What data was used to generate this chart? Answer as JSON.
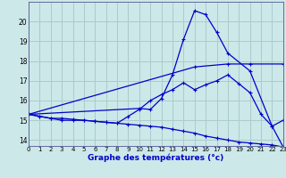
{
  "title": "Graphe des températures (°c)",
  "background_color": "#cce8e8",
  "grid_color": "#aacccc",
  "line_color": "#0000cc",
  "xlim": [
    0,
    23
  ],
  "ylim": [
    13.7,
    21.0
  ],
  "yticks": [
    14,
    15,
    16,
    17,
    18,
    19,
    20
  ],
  "xticks": [
    0,
    1,
    2,
    3,
    4,
    5,
    6,
    7,
    8,
    9,
    10,
    11,
    12,
    13,
    14,
    15,
    16,
    17,
    18,
    19,
    20,
    21,
    22,
    23
  ],
  "line1_x": [
    0,
    1,
    2,
    3,
    4,
    5,
    6,
    7,
    8,
    9,
    10,
    11,
    12,
    13,
    14,
    15,
    16,
    17,
    18,
    19,
    20,
    21,
    22,
    23
  ],
  "line1_y": [
    15.3,
    15.2,
    15.1,
    15.1,
    15.05,
    15.0,
    14.95,
    14.9,
    14.85,
    14.8,
    14.75,
    14.7,
    14.65,
    14.55,
    14.45,
    14.35,
    14.2,
    14.1,
    14.0,
    13.9,
    13.85,
    13.8,
    13.75,
    13.65
  ],
  "line2_x": [
    0,
    1,
    2,
    3,
    4,
    5,
    6,
    7,
    8,
    9,
    10,
    11,
    12,
    13,
    14,
    15,
    16,
    17,
    18,
    19,
    20,
    21,
    22,
    23
  ],
  "line2_y": [
    15.3,
    15.2,
    15.1,
    15.0,
    15.0,
    15.0,
    14.95,
    14.9,
    14.85,
    15.2,
    15.55,
    16.0,
    16.3,
    16.55,
    16.9,
    16.55,
    16.8,
    17.0,
    17.3,
    16.85,
    16.4,
    15.3,
    14.7,
    15.0
  ],
  "line3_x": [
    0,
    10,
    11,
    12,
    13,
    14,
    15,
    16,
    17,
    18,
    20,
    22,
    23
  ],
  "line3_y": [
    15.3,
    15.6,
    15.55,
    16.1,
    17.3,
    19.1,
    20.55,
    20.35,
    19.45,
    18.4,
    17.5,
    14.7,
    13.65
  ],
  "line4_x": [
    0,
    15,
    18,
    20,
    23
  ],
  "line4_y": [
    15.3,
    17.7,
    17.85,
    17.85,
    17.85
  ]
}
